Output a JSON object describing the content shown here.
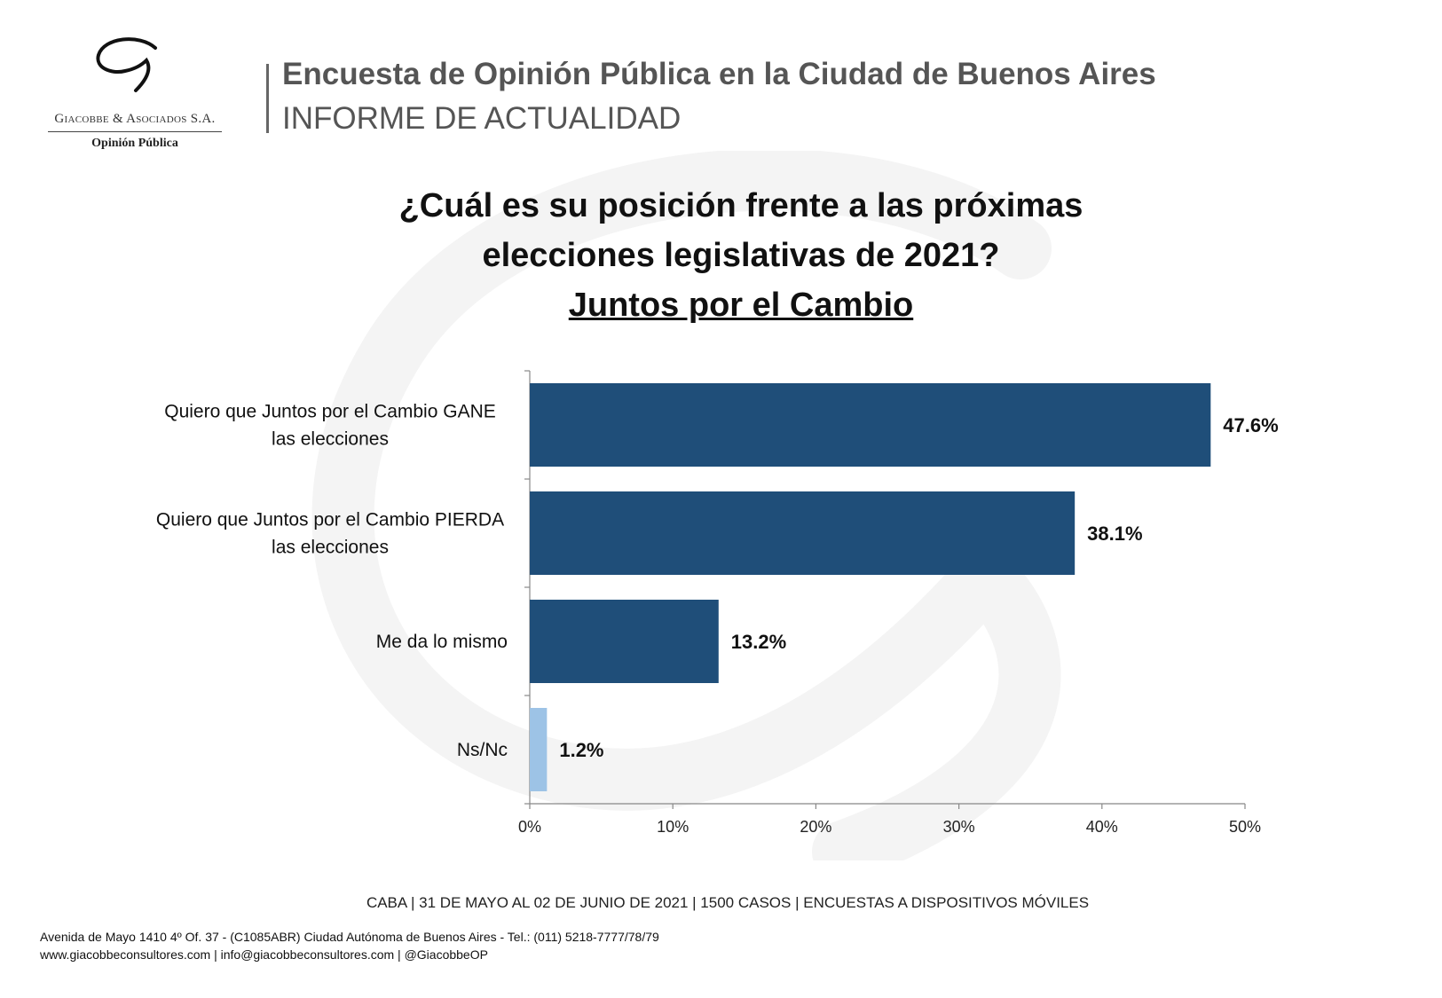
{
  "logo": {
    "name": "Giacobbe & Asociados S.A.",
    "subtitle": "Opinión Pública"
  },
  "header": {
    "title": "Encuesta de Opinión Pública en la Ciudad de Buenos Aires",
    "subtitle": "INFORME DE ACTUALIDAD"
  },
  "question": {
    "line1": "¿Cuál es su posición frente a las próximas",
    "line2": "elecciones legislativas de 2021?",
    "line3": "Juntos por el Cambio"
  },
  "chart_data": {
    "type": "bar",
    "orientation": "horizontal",
    "categories": [
      "Quiero que Juntos por el Cambio GANE las elecciones",
      "Quiero que Juntos por el Cambio PIERDA las elecciones",
      "Me da lo mismo",
      "Ns/Nc"
    ],
    "values": [
      47.6,
      38.1,
      13.2,
      1.2
    ],
    "data_labels": [
      "47.6%",
      "38.1%",
      "13.2%",
      "1.2%"
    ],
    "bar_colors": [
      "#1f4e79",
      "#1f4e79",
      "#1f4e79",
      "#9dc3e6"
    ],
    "xlim": [
      0,
      50
    ],
    "x_ticks": [
      "0%",
      "10%",
      "20%",
      "30%",
      "40%",
      "50%"
    ],
    "grid": false,
    "legend": "none"
  },
  "footer": {
    "caption": "CABA | 31 DE MAYO AL 02 DE JUNIO DE 2021 | 1500 CASOS | ENCUESTAS A DISPOSITIVOS MÓVILES",
    "address_line1": "Avenida de Mayo 1410 4º Of. 37 - (C1085ABR) Ciudad Autónoma de Buenos Aires - Tel.: (011) 5218-7777/78/79",
    "address_line2": "www.giacobbeconsultores.com | info@giacobbeconsultores.com | @GiacobbeOP"
  }
}
